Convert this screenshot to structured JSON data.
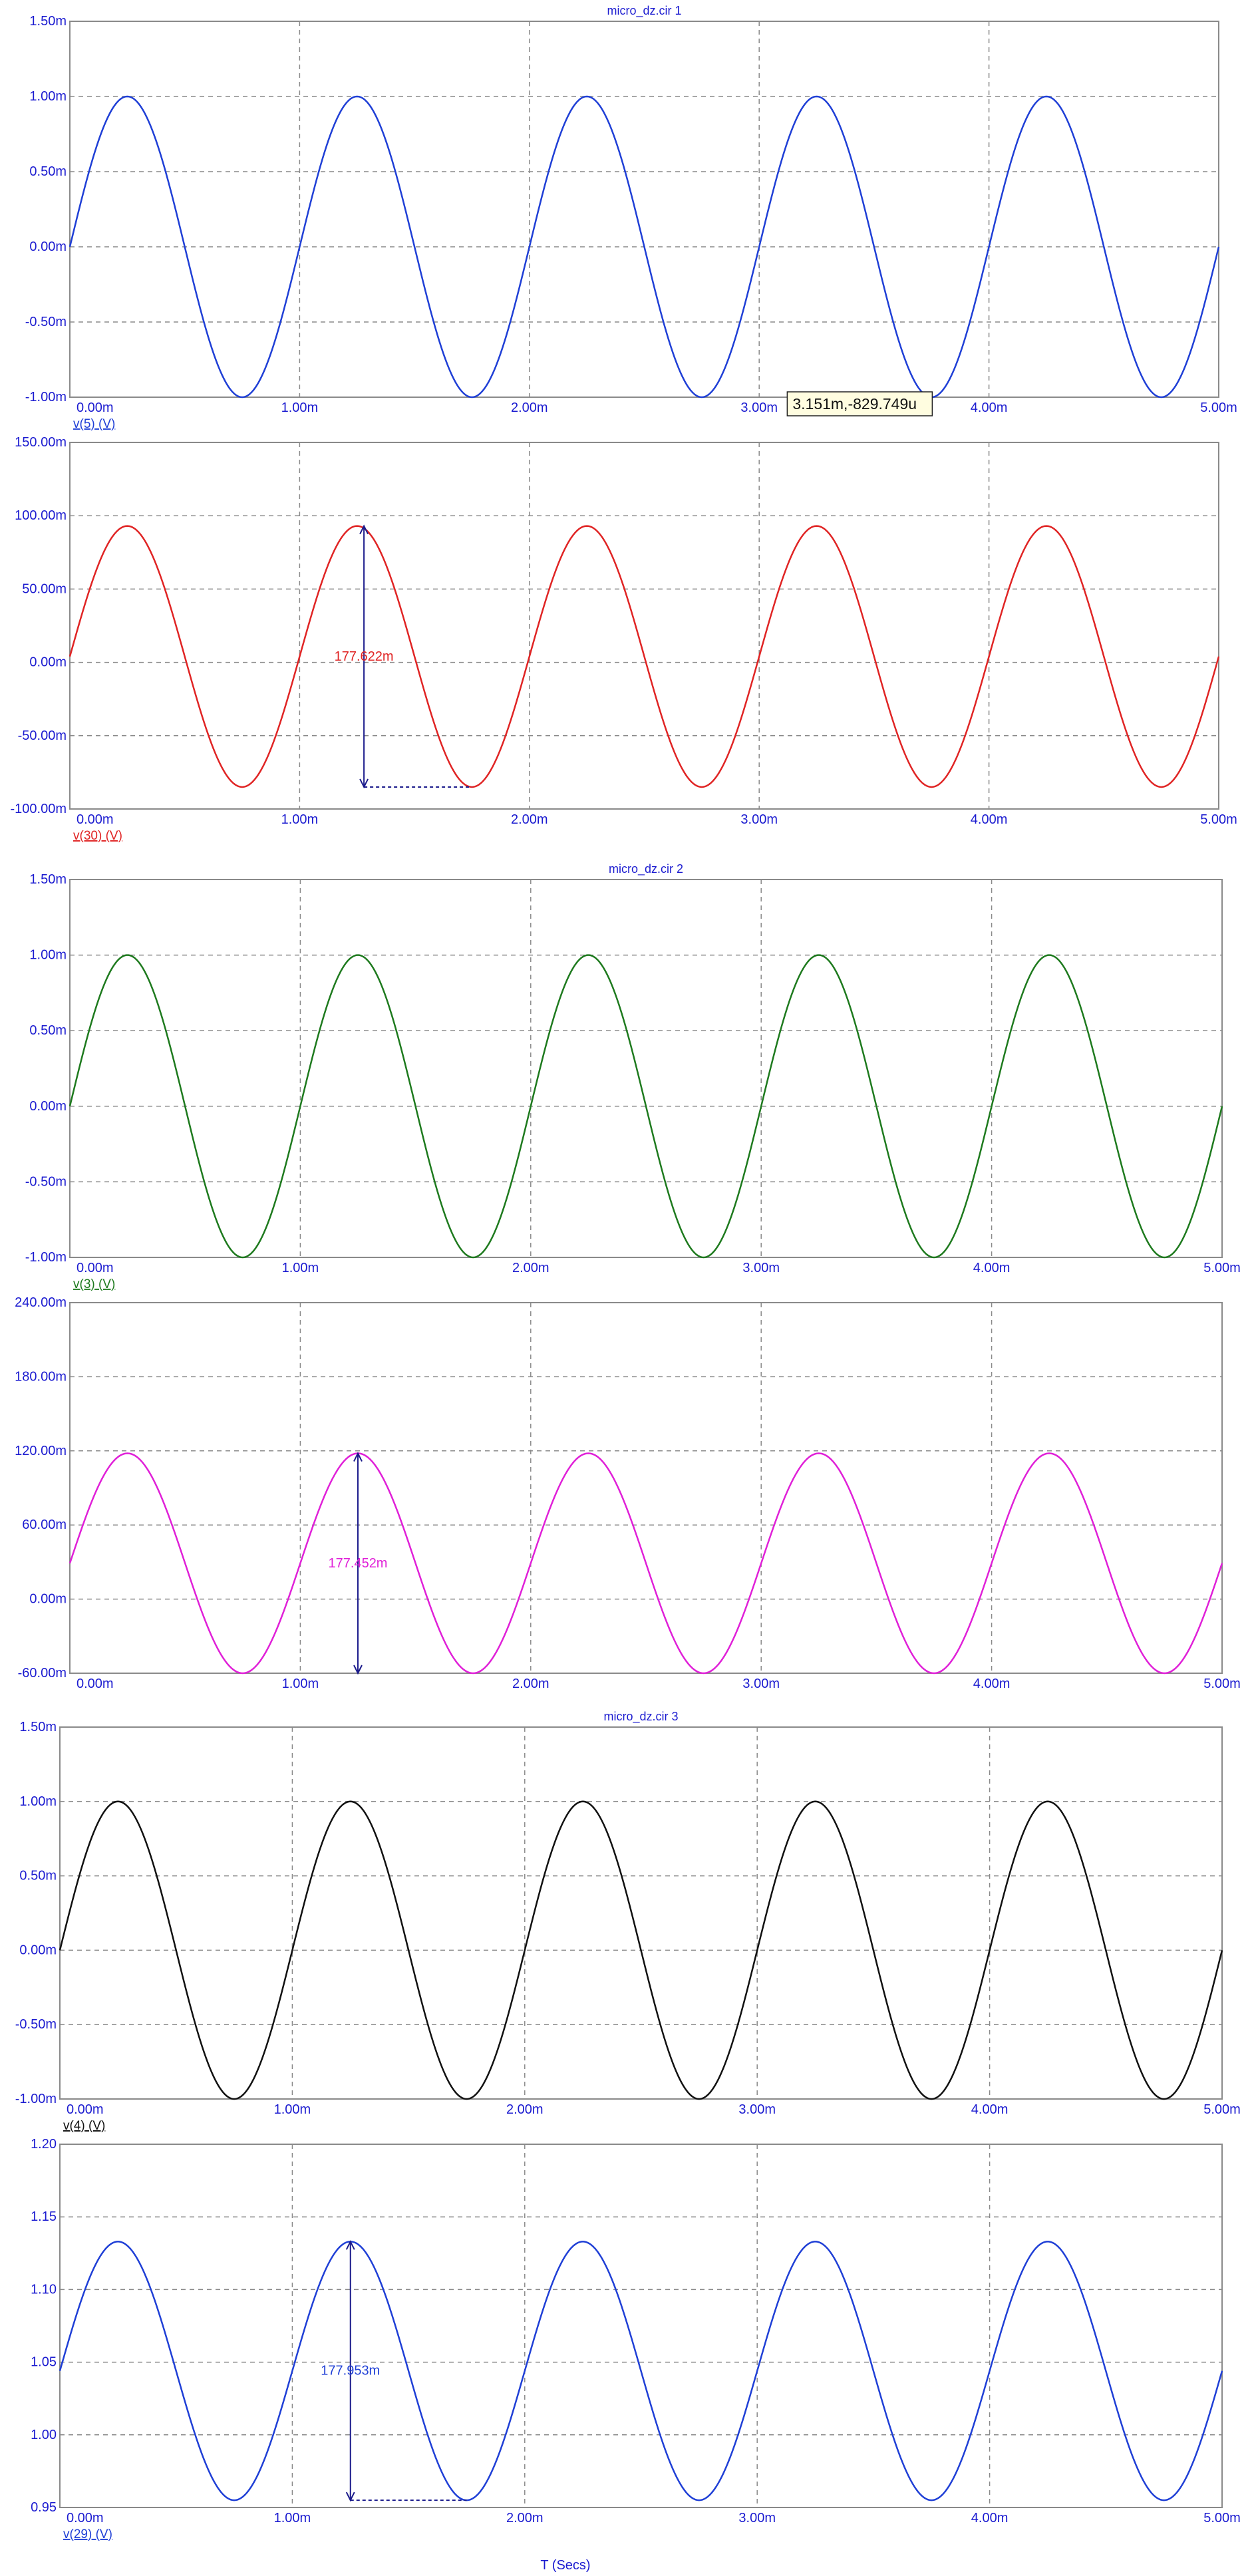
{
  "colors": {
    "axis_text": "#1b1bd0",
    "grid": "#8a8a8a",
    "frame": "#8a8a8a",
    "annotation": "#1b1b8c"
  },
  "xlabel": "T (Secs)",
  "chart_data": [
    {
      "type": "line",
      "title": "micro_dz.cir 1",
      "x_ticks": [
        "0.00m",
        "1.00m",
        "2.00m",
        "3.00m",
        "4.00m",
        "5.00m"
      ],
      "y_ticks": [
        "1.50m",
        "1.00m",
        "0.50m",
        "0.00m",
        "-0.50m",
        "-1.00m"
      ],
      "xlim": [
        0,
        5
      ],
      "ylim": [
        -1.0,
        1.5
      ],
      "grid": true,
      "series": [
        {
          "name": "v(5) (V)",
          "color": "#1f3fd6",
          "sine": {
            "offset": 0.0,
            "amplitude": 1.0,
            "period": 1.0,
            "phase": 0.0
          }
        }
      ],
      "cursor_tooltip": {
        "text": "3.151m,-829.749u",
        "x": 3.151,
        "y": -1.0
      }
    },
    {
      "type": "line",
      "title": "",
      "x_ticks": [
        "0.00m",
        "1.00m",
        "2.00m",
        "3.00m",
        "4.00m",
        "5.00m"
      ],
      "y_ticks": [
        "150.00m",
        "100.00m",
        "50.00m",
        "0.00m",
        "-50.00m",
        "-100.00m"
      ],
      "xlim": [
        0,
        5
      ],
      "ylim": [
        -100,
        150
      ],
      "grid": true,
      "series": [
        {
          "name": "v(30) (V)",
          "color": "#e02424",
          "sine": {
            "offset": 4,
            "amplitude": 89,
            "period": 1.0,
            "phase": 0.0
          }
        }
      ],
      "measurement": {
        "text": "177.622m",
        "x": 1.28,
        "y_top": 93,
        "y_bottom": -85,
        "x_end": 1.75
      }
    },
    {
      "type": "line",
      "title": "micro_dz.cir 2",
      "x_ticks": [
        "0.00m",
        "1.00m",
        "2.00m",
        "3.00m",
        "4.00m",
        "5.00m"
      ],
      "y_ticks": [
        "1.50m",
        "1.00m",
        "0.50m",
        "0.00m",
        "-0.50m",
        "-1.00m"
      ],
      "xlim": [
        0,
        5
      ],
      "ylim": [
        -1.0,
        1.5
      ],
      "grid": true,
      "series": [
        {
          "name": "v(3) (V)",
          "color": "#1e7a1e",
          "sine": {
            "offset": 0.0,
            "amplitude": 1.0,
            "period": 1.0,
            "phase": 0.0
          }
        }
      ]
    },
    {
      "type": "line",
      "title": "",
      "x_ticks": [
        "0.00m",
        "1.00m",
        "2.00m",
        "3.00m",
        "4.00m",
        "5.00m"
      ],
      "y_ticks": [
        "240.00m",
        "180.00m",
        "120.00m",
        "60.00m",
        "0.00m",
        "-60.00m"
      ],
      "xlim": [
        0,
        5
      ],
      "ylim": [
        -60,
        240
      ],
      "grid": true,
      "series": [
        {
          "name": "",
          "color": "#e020d8",
          "sine": {
            "offset": 29,
            "amplitude": 89,
            "period": 1.0,
            "phase": 0.0
          }
        }
      ],
      "measurement": {
        "text": "177.452m",
        "x": 1.25,
        "y_top": 118,
        "y_bottom": -60,
        "x_end": 1.25
      }
    },
    {
      "type": "line",
      "title": "micro_dz.cir 3",
      "x_ticks": [
        "0.00m",
        "1.00m",
        "2.00m",
        "3.00m",
        "4.00m",
        "5.00m"
      ],
      "y_ticks": [
        "1.50m",
        "1.00m",
        "0.50m",
        "0.00m",
        "-0.50m",
        "-1.00m"
      ],
      "xlim": [
        0,
        5
      ],
      "ylim": [
        -1.0,
        1.5
      ],
      "grid": true,
      "series": [
        {
          "name": "v(4) (V)",
          "color": "#111111",
          "sine": {
            "offset": 0.0,
            "amplitude": 1.0,
            "period": 1.0,
            "phase": 0.0
          }
        }
      ]
    },
    {
      "type": "line",
      "title": "",
      "x_ticks": [
        "0.00m",
        "1.00m",
        "2.00m",
        "3.00m",
        "4.00m",
        "5.00m"
      ],
      "y_ticks": [
        "1.20",
        "1.15",
        "1.10",
        "1.05",
        "1.00",
        "0.95"
      ],
      "xlim": [
        0,
        5
      ],
      "ylim": [
        0.95,
        1.2
      ],
      "grid": true,
      "series": [
        {
          "name": "v(29) (V)",
          "color": "#1f3fd6",
          "sine": {
            "offset": 1.044,
            "amplitude": 0.089,
            "period": 1.0,
            "phase": 0.0
          }
        }
      ],
      "measurement": {
        "text": "177.953m",
        "x": 1.25,
        "y_top": 1.133,
        "y_bottom": 0.955,
        "x_end": 1.75
      }
    }
  ]
}
